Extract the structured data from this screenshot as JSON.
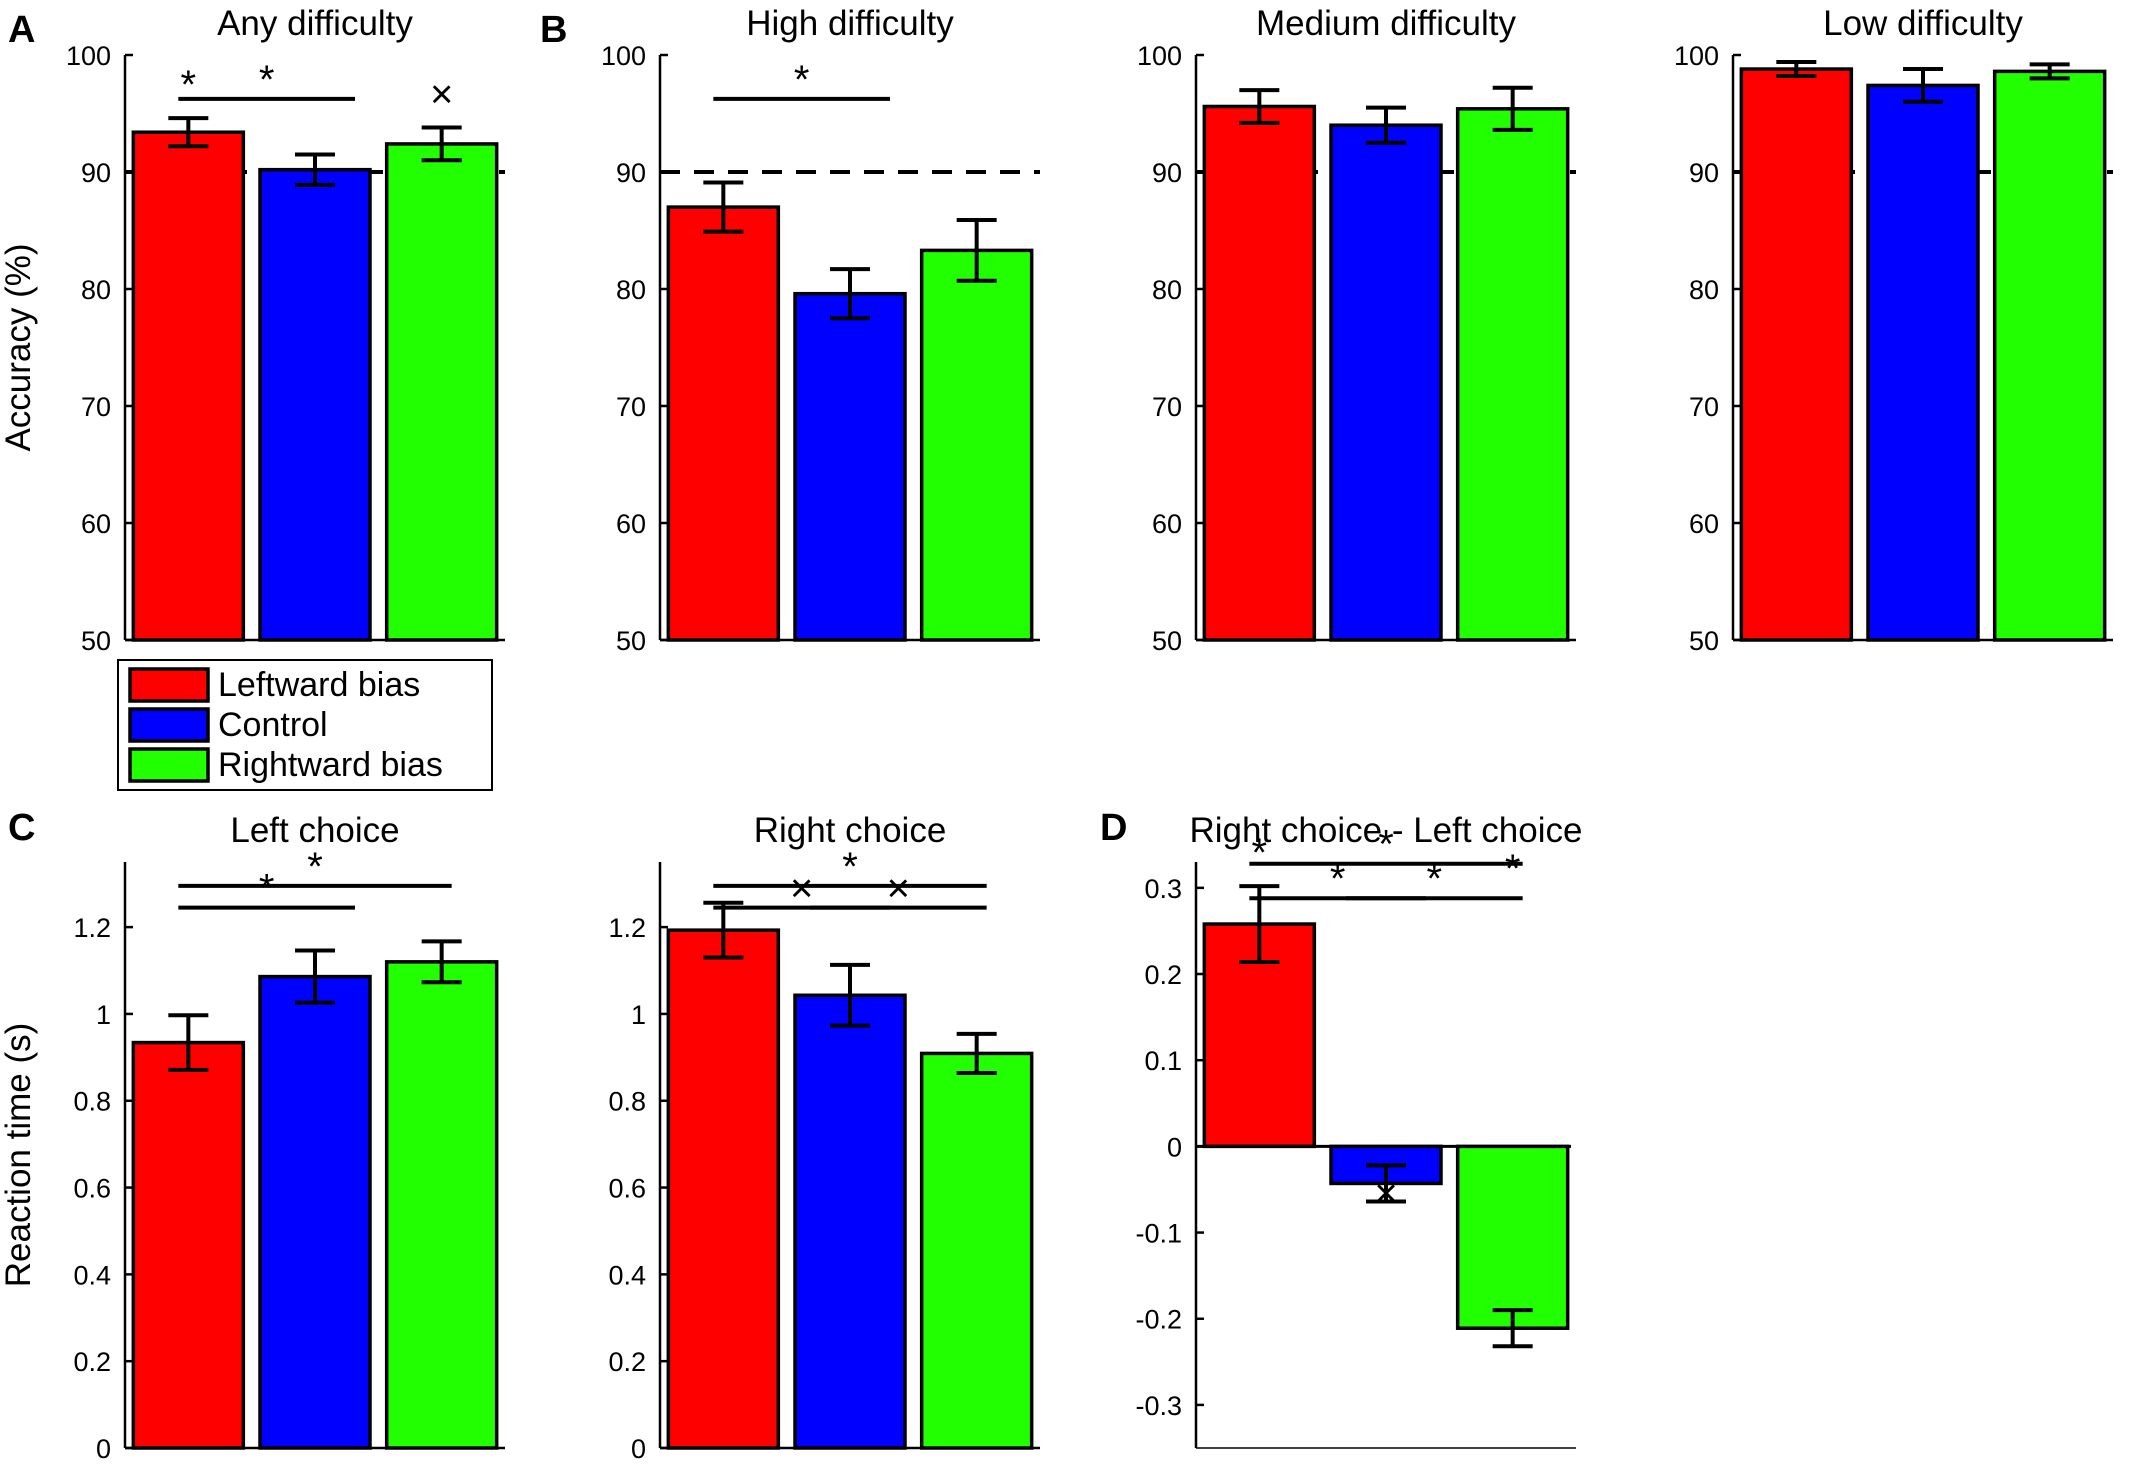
{
  "colors": {
    "leftward": "#ff0000",
    "control": "#0000ff",
    "rightward": "#22ff00",
    "axis": "#000000"
  },
  "legend": {
    "items": [
      {
        "label": "Leftward bias",
        "color": "#ff0000"
      },
      {
        "label": "Control",
        "color": "#0000ff"
      },
      {
        "label": "Rightward bias",
        "color": "#22ff00"
      }
    ]
  },
  "chart_data": [
    {
      "panel_letter": "A",
      "type": "bar",
      "title": "Any difficulty",
      "ylabel": "Accuracy (%)",
      "ylim": [
        50,
        100
      ],
      "yticks": [
        50,
        60,
        70,
        80,
        90,
        100
      ],
      "ytick_labels": [
        "50",
        "60",
        "70",
        "80",
        "90",
        "100"
      ],
      "categories": [
        "Leftward bias",
        "Control",
        "Rightward bias"
      ],
      "values": [
        93.4,
        90.2,
        92.4
      ],
      "errors": [
        1.2,
        1.3,
        1.4
      ],
      "reference_line": 90,
      "annotations": [
        {
          "symbol": "*",
          "type": "bar",
          "bar": 0
        },
        {
          "symbol": "*",
          "type": "bracket",
          "from": 0,
          "to": 1,
          "level": 0
        },
        {
          "symbol": "×",
          "type": "bar",
          "bar": 2
        }
      ]
    },
    {
      "panel_letter": "B",
      "type": "bar",
      "title": "High difficulty",
      "ylabel": "",
      "ylim": [
        50,
        100
      ],
      "yticks": [
        50,
        60,
        70,
        80,
        90,
        100
      ],
      "ytick_labels": [
        "50",
        "60",
        "70",
        "80",
        "90",
        "100"
      ],
      "categories": [
        "Leftward bias",
        "Control",
        "Rightward bias"
      ],
      "values": [
        87.0,
        79.6,
        83.3
      ],
      "errors": [
        2.1,
        2.1,
        2.6
      ],
      "reference_line": 90,
      "annotations": [
        {
          "symbol": "*",
          "type": "bracket",
          "from": 0,
          "to": 1,
          "level": 0
        }
      ]
    },
    {
      "panel_letter": "",
      "type": "bar",
      "title": "Medium difficulty",
      "ylabel": "",
      "ylim": [
        50,
        100
      ],
      "yticks": [
        50,
        60,
        70,
        80,
        90,
        100
      ],
      "ytick_labels": [
        "50",
        "60",
        "70",
        "80",
        "90",
        "100"
      ],
      "categories": [
        "Leftward bias",
        "Control",
        "Rightward bias"
      ],
      "values": [
        95.6,
        94.0,
        95.4
      ],
      "errors": [
        1.4,
        1.5,
        1.8
      ],
      "reference_line": 90,
      "annotations": []
    },
    {
      "panel_letter": "",
      "type": "bar",
      "title": "Low difficulty",
      "ylabel": "",
      "ylim": [
        50,
        100
      ],
      "yticks": [
        50,
        60,
        70,
        80,
        90,
        100
      ],
      "ytick_labels": [
        "50",
        "60",
        "70",
        "80",
        "90",
        "100"
      ],
      "categories": [
        "Leftward bias",
        "Control",
        "Rightward bias"
      ],
      "values": [
        98.8,
        97.4,
        98.6
      ],
      "errors": [
        0.6,
        1.4,
        0.6
      ],
      "reference_line": 90,
      "annotations": []
    },
    {
      "panel_letter": "C",
      "type": "bar",
      "title": "Left choice",
      "ylabel": "Reaction time (s)",
      "ylim": [
        0,
        1.35
      ],
      "yticks": [
        0,
        0.2,
        0.4,
        0.6,
        0.8,
        1,
        1.2
      ],
      "ytick_labels": [
        "0",
        "0.2",
        "0.4",
        "0.6",
        "0.8",
        "1",
        "1.2"
      ],
      "categories": [
        "Leftward bias",
        "Control",
        "Rightward bias"
      ],
      "values": [
        0.934,
        1.086,
        1.12
      ],
      "errors": [
        0.063,
        0.06,
        0.047
      ],
      "reference_line": null,
      "annotations": [
        {
          "symbol": "*",
          "type": "bracket",
          "from": 0,
          "to": 1,
          "level": 0
        },
        {
          "symbol": "*",
          "type": "bracket",
          "from": 0,
          "to": 2,
          "level": 1
        }
      ]
    },
    {
      "panel_letter": "",
      "type": "bar",
      "title": "Right choice",
      "ylabel": "",
      "ylim": [
        0,
        1.35
      ],
      "yticks": [
        0,
        0.2,
        0.4,
        0.6,
        0.8,
        1,
        1.2
      ],
      "ytick_labels": [
        "0",
        "0.2",
        "0.4",
        "0.6",
        "0.8",
        "1",
        "1.2"
      ],
      "categories": [
        "Leftward bias",
        "Control",
        "Rightward bias"
      ],
      "values": [
        1.193,
        1.043,
        0.909
      ],
      "errors": [
        0.063,
        0.07,
        0.045
      ],
      "reference_line": null,
      "annotations": [
        {
          "symbol": "×",
          "type": "bracket",
          "from": 0,
          "to": 1,
          "level": 0
        },
        {
          "symbol": "×",
          "type": "bracket",
          "from": 1,
          "to": 2,
          "level": 0
        },
        {
          "symbol": "*",
          "type": "bracket",
          "from": 0,
          "to": 2,
          "level": 1
        }
      ]
    },
    {
      "panel_letter": "D",
      "type": "bar",
      "title": "Right choice - Left choice",
      "ylabel": "",
      "ylim": [
        -0.35,
        0.33
      ],
      "yticks": [
        -0.3,
        -0.2,
        -0.1,
        0,
        0.1,
        0.2,
        0.3
      ],
      "ytick_labels": [
        "-0.3",
        "-0.2",
        "-0.1",
        "0",
        "0.1",
        "0.2",
        "0.3"
      ],
      "categories": [
        "Leftward bias",
        "Control",
        "Rightward bias"
      ],
      "values": [
        0.258,
        -0.043,
        -0.211
      ],
      "errors": [
        0.044,
        0.021,
        0.021
      ],
      "reference_line": null,
      "annotations": [
        {
          "symbol": "*",
          "type": "bar",
          "bar": 0
        },
        {
          "symbol": "×",
          "type": "bar",
          "bar": 1
        },
        {
          "symbol": "*",
          "type": "bar",
          "bar": 2
        },
        {
          "symbol": "*",
          "type": "bracket",
          "from": 0,
          "to": 1,
          "level": 0
        },
        {
          "symbol": "*",
          "type": "bracket",
          "from": 1,
          "to": 2,
          "level": 0
        },
        {
          "symbol": "*",
          "type": "bracket",
          "from": 0,
          "to": 2,
          "level": 1
        }
      ]
    }
  ]
}
